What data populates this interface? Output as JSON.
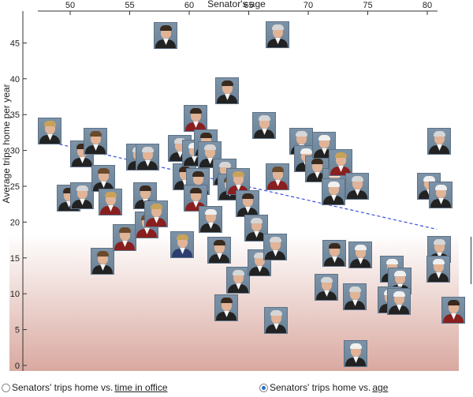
{
  "chart_data": {
    "type": "scatter",
    "title": "",
    "xlabel": "Senator's age",
    "ylabel": "Average trips home per year",
    "xlim": [
      47,
      81.5
    ],
    "ylim": [
      0,
      47.5
    ],
    "x_ticks": [
      50,
      55,
      60,
      65,
      70,
      75,
      80
    ],
    "y_ticks": [
      0,
      5,
      10,
      15,
      20,
      25,
      30,
      35,
      40,
      45
    ],
    "trendline": {
      "x": [
        48.2,
        80.8
      ],
      "y": [
        31.2,
        19.0
      ]
    },
    "grid": false,
    "background_gradient": [
      "#ffffff",
      "#d9a9a0"
    ],
    "points": [
      {
        "x": 48.3,
        "y": 32.7,
        "look": "blonde"
      },
      {
        "x": 51.0,
        "y": 29.5,
        "look": "dark"
      },
      {
        "x": 52.1,
        "y": 31.3,
        "look": "brown"
      },
      {
        "x": 49.9,
        "y": 23.4,
        "look": "dark"
      },
      {
        "x": 51.0,
        "y": 23.7,
        "look": "gray"
      },
      {
        "x": 52.7,
        "y": 14.5,
        "look": "brown"
      },
      {
        "x": 52.8,
        "y": 26.1,
        "look": "brown"
      },
      {
        "x": 53.4,
        "y": 22.8,
        "look": "blondeRed"
      },
      {
        "x": 54.6,
        "y": 17.8,
        "look": "brownRed"
      },
      {
        "x": 55.7,
        "y": 29.1,
        "look": "gray"
      },
      {
        "x": 56.5,
        "y": 29.1,
        "look": "gray"
      },
      {
        "x": 56.3,
        "y": 23.7,
        "look": "dark"
      },
      {
        "x": 56.4,
        "y": 19.6,
        "look": "brownRed"
      },
      {
        "x": 57.2,
        "y": 21.2,
        "look": "blondeRed"
      },
      {
        "x": 58.0,
        "y": 46.0,
        "look": "dark"
      },
      {
        "x": 59.2,
        "y": 30.3,
        "look": "gray"
      },
      {
        "x": 59.6,
        "y": 26.3,
        "look": "dark"
      },
      {
        "x": 59.4,
        "y": 16.8,
        "look": "blondeBlue"
      },
      {
        "x": 60.5,
        "y": 34.5,
        "look": "darkRed"
      },
      {
        "x": 60.4,
        "y": 29.6,
        "look": "white"
      },
      {
        "x": 60.7,
        "y": 25.7,
        "look": "dark"
      },
      {
        "x": 60.5,
        "y": 23.3,
        "look": "darkRed"
      },
      {
        "x": 61.4,
        "y": 31.1,
        "look": "dark"
      },
      {
        "x": 61.7,
        "y": 29.4,
        "look": "gray"
      },
      {
        "x": 61.8,
        "y": 20.4,
        "look": "white"
      },
      {
        "x": 62.5,
        "y": 16.1,
        "look": "dark"
      },
      {
        "x": 63.2,
        "y": 38.3,
        "look": "dark"
      },
      {
        "x": 63.0,
        "y": 27.0,
        "look": "gray"
      },
      {
        "x": 63.4,
        "y": 24.9,
        "look": "brown"
      },
      {
        "x": 63.1,
        "y": 8.0,
        "look": "dark"
      },
      {
        "x": 64.1,
        "y": 25.7,
        "look": "blondeRed"
      },
      {
        "x": 64.1,
        "y": 11.9,
        "look": "gray"
      },
      {
        "x": 64.9,
        "y": 22.6,
        "look": "dark"
      },
      {
        "x": 65.6,
        "y": 19.2,
        "look": "gray"
      },
      {
        "x": 65.9,
        "y": 14.3,
        "look": "gray"
      },
      {
        "x": 66.3,
        "y": 33.5,
        "look": "gray"
      },
      {
        "x": 67.4,
        "y": 46.2,
        "look": "gray"
      },
      {
        "x": 67.4,
        "y": 26.3,
        "look": "brownRed"
      },
      {
        "x": 67.2,
        "y": 16.5,
        "look": "gray"
      },
      {
        "x": 67.3,
        "y": 6.3,
        "look": "gray"
      },
      {
        "x": 69.4,
        "y": 31.3,
        "look": "gray"
      },
      {
        "x": 69.8,
        "y": 28.8,
        "look": "white"
      },
      {
        "x": 70.7,
        "y": 27.4,
        "look": "dark"
      },
      {
        "x": 71.3,
        "y": 30.7,
        "look": "white"
      },
      {
        "x": 71.5,
        "y": 10.9,
        "look": "gray"
      },
      {
        "x": 72.2,
        "y": 25.7,
        "look": "white"
      },
      {
        "x": 72.1,
        "y": 24.2,
        "look": "white"
      },
      {
        "x": 72.2,
        "y": 15.6,
        "look": "dark"
      },
      {
        "x": 72.7,
        "y": 28.3,
        "look": "blondeRed"
      },
      {
        "x": 74.1,
        "y": 25.0,
        "look": "gray"
      },
      {
        "x": 74.4,
        "y": 15.4,
        "look": "white"
      },
      {
        "x": 73.9,
        "y": 9.6,
        "look": "gray"
      },
      {
        "x": 74.0,
        "y": 1.7,
        "look": "white"
      },
      {
        "x": 77.0,
        "y": 13.4,
        "look": "white"
      },
      {
        "x": 77.7,
        "y": 11.8,
        "look": "white"
      },
      {
        "x": 76.8,
        "y": 9.1,
        "look": "white"
      },
      {
        "x": 77.6,
        "y": 8.9,
        "look": "white"
      },
      {
        "x": 80.1,
        "y": 25.0,
        "look": "white"
      },
      {
        "x": 81.0,
        "y": 31.3,
        "look": "gray"
      },
      {
        "x": 81.1,
        "y": 23.8,
        "look": "white"
      },
      {
        "x": 81.0,
        "y": 16.2,
        "look": "gray"
      },
      {
        "x": 80.9,
        "y": 13.4,
        "look": "white"
      },
      {
        "x": 82.2,
        "y": 7.7,
        "look": "darkRed"
      }
    ]
  },
  "controls": {
    "option_office_prefix": "Senators' trips home vs. ",
    "option_office_link": "time in office",
    "option_age_prefix": "Senators' trips home vs. ",
    "option_age_link": "age",
    "selected": "age"
  },
  "colors": {
    "trendline": "#3b4fe0",
    "axis": "#333333",
    "radio_accent": "#2b6cd1"
  }
}
